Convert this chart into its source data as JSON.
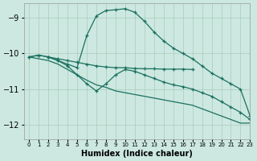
{
  "xlabel": "Humidex (Indice chaleur)",
  "xlim": [
    -0.5,
    23
  ],
  "ylim": [
    -12.4,
    -8.6
  ],
  "background_color": "#cce8e0",
  "grid_color": "#aaccbb",
  "line_color": "#1a7060",
  "curve1_x": [
    0,
    1,
    2,
    3,
    4,
    5,
    6,
    7,
    8,
    9,
    10,
    11,
    12,
    13,
    14,
    15,
    16,
    17,
    18,
    19,
    20,
    21,
    22,
    23
  ],
  "curve1_y": [
    -10.1,
    -10.05,
    -10.1,
    -10.2,
    -10.3,
    -10.4,
    -9.5,
    -8.95,
    -8.8,
    -8.78,
    -8.75,
    -8.85,
    -9.1,
    -9.4,
    -9.65,
    -9.85,
    -10.0,
    -10.15,
    -10.35,
    -10.55,
    -10.7,
    -10.85,
    -11.0,
    -11.75
  ],
  "curve2_x": [
    0,
    1,
    2,
    3,
    4,
    5,
    6,
    7,
    8,
    9,
    10,
    11,
    12,
    13,
    14,
    15,
    16,
    17
  ],
  "curve2_y": [
    -10.1,
    -10.05,
    -10.1,
    -10.15,
    -10.2,
    -10.25,
    -10.3,
    -10.35,
    -10.38,
    -10.4,
    -10.4,
    -10.42,
    -10.43,
    -10.43,
    -10.44,
    -10.44,
    -10.44,
    -10.45
  ],
  "curve3_x": [
    2,
    3,
    4,
    5,
    6,
    7,
    8,
    9,
    10,
    11,
    12,
    13,
    14,
    15,
    16,
    17,
    18,
    19,
    20,
    21,
    22,
    23
  ],
  "curve3_y": [
    -10.1,
    -10.2,
    -10.35,
    -10.6,
    -10.85,
    -11.05,
    -10.85,
    -10.6,
    -10.45,
    -10.5,
    -10.6,
    -10.7,
    -10.8,
    -10.88,
    -10.93,
    -11.0,
    -11.1,
    -11.2,
    -11.35,
    -11.5,
    -11.65,
    -11.85
  ],
  "curve4_x": [
    0,
    1,
    2,
    3,
    4,
    5,
    6,
    7,
    8,
    9,
    10,
    11,
    12,
    13,
    14,
    15,
    16,
    17,
    18,
    19,
    20,
    21,
    22,
    23
  ],
  "curve4_y": [
    -10.1,
    -10.15,
    -10.2,
    -10.3,
    -10.45,
    -10.6,
    -10.75,
    -10.88,
    -10.95,
    -11.05,
    -11.1,
    -11.15,
    -11.2,
    -11.25,
    -11.3,
    -11.35,
    -11.4,
    -11.45,
    -11.55,
    -11.65,
    -11.75,
    -11.85,
    -11.95,
    -11.95
  ],
  "yticks": [
    -9,
    -10,
    -11,
    -12
  ],
  "xticks": [
    0,
    1,
    2,
    3,
    4,
    5,
    6,
    7,
    8,
    9,
    10,
    11,
    12,
    13,
    14,
    15,
    16,
    17,
    18,
    19,
    20,
    21,
    22,
    23
  ]
}
